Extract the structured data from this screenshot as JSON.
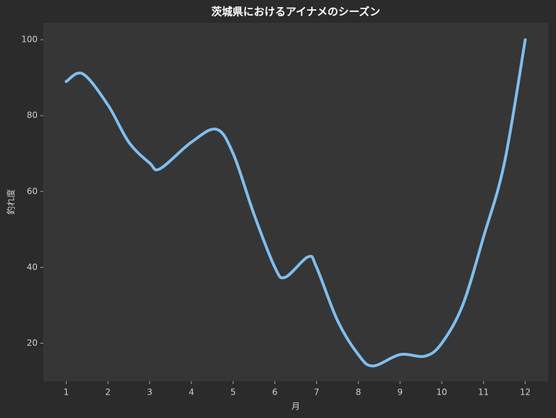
{
  "chart_data": {
    "type": "line",
    "title": "茨城県におけるアイナメのシーズン",
    "x_label": "月",
    "y_label": "釣れ度",
    "x": [
      1,
      1.4,
      2,
      2.5,
      3,
      3.25,
      4,
      4.6,
      5,
      5.5,
      6,
      6.25,
      6.8,
      7,
      7.5,
      8,
      8.35,
      9,
      9.6,
      10,
      10.5,
      11,
      11.5,
      12
    ],
    "series": [
      {
        "color": "#7fbff0",
        "values": [
          89,
          91,
          82.8,
          73,
          67.5,
          66,
          73,
          76.4,
          70,
          54,
          40,
          37.4,
          42.8,
          40,
          26,
          17,
          14,
          17,
          16.6,
          20,
          30,
          48,
          67.5,
          100
        ]
      }
    ],
    "xlim": [
      0.45,
      12.55
    ],
    "ylim": [
      10,
      104.5
    ],
    "xticks": [
      1,
      2,
      3,
      4,
      5,
      6,
      7,
      8,
      9,
      10,
      11,
      12
    ],
    "yticks": [
      20,
      40,
      60,
      80,
      100
    ]
  }
}
